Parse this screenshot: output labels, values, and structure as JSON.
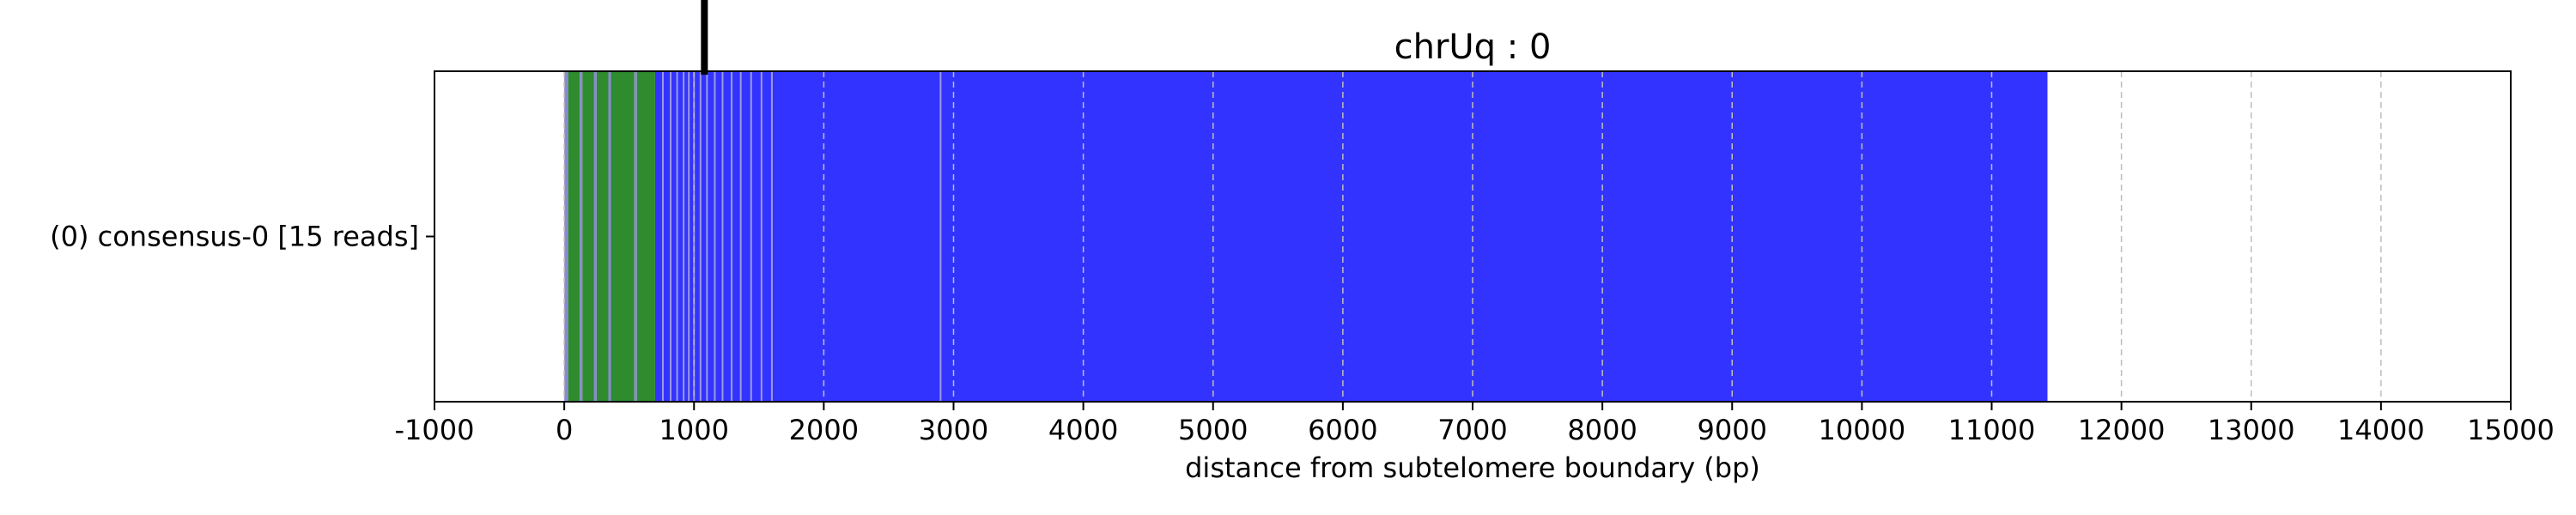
{
  "chart_data": {
    "type": "bar",
    "orientation": "horizontal",
    "title": "chrUq : 0",
    "xlabel": "distance from subtelomere boundary (bp)",
    "ylabel": "",
    "xlim": [
      -1000,
      15000
    ],
    "xticks": [
      -1000,
      0,
      1000,
      2000,
      3000,
      4000,
      5000,
      6000,
      7000,
      8000,
      9000,
      10000,
      11000,
      12000,
      13000,
      14000,
      15000
    ],
    "grid": "vertical dashed",
    "categories": [
      "(0) consensus-0 [15 reads]"
    ],
    "reads": [
      {
        "name": "(0) consensus-0 [15 reads]",
        "segments": [
          {
            "start": 0,
            "end": 30,
            "color": "#8a8ad0"
          },
          {
            "start": 30,
            "end": 120,
            "color": "#2e8b2e"
          },
          {
            "start": 120,
            "end": 140,
            "color": "#8a8ad0"
          },
          {
            "start": 140,
            "end": 230,
            "color": "#2e8b2e"
          },
          {
            "start": 230,
            "end": 250,
            "color": "#8a8ad0"
          },
          {
            "start": 250,
            "end": 340,
            "color": "#2e8b2e"
          },
          {
            "start": 340,
            "end": 360,
            "color": "#8a8ad0"
          },
          {
            "start": 360,
            "end": 540,
            "color": "#2e8b2e"
          },
          {
            "start": 540,
            "end": 560,
            "color": "#8a8ad0"
          },
          {
            "start": 560,
            "end": 700,
            "color": "#2e8b2e"
          },
          {
            "start": 700,
            "end": 11430,
            "color": "#3333ff"
          }
        ],
        "overlay_lines": [
          760,
          820,
          870,
          920,
          960,
          1000,
          1050,
          1100,
          1160,
          1220,
          1290,
          1360,
          1440,
          1520,
          1600,
          2900
        ]
      }
    ],
    "marker_x": 1080
  }
}
